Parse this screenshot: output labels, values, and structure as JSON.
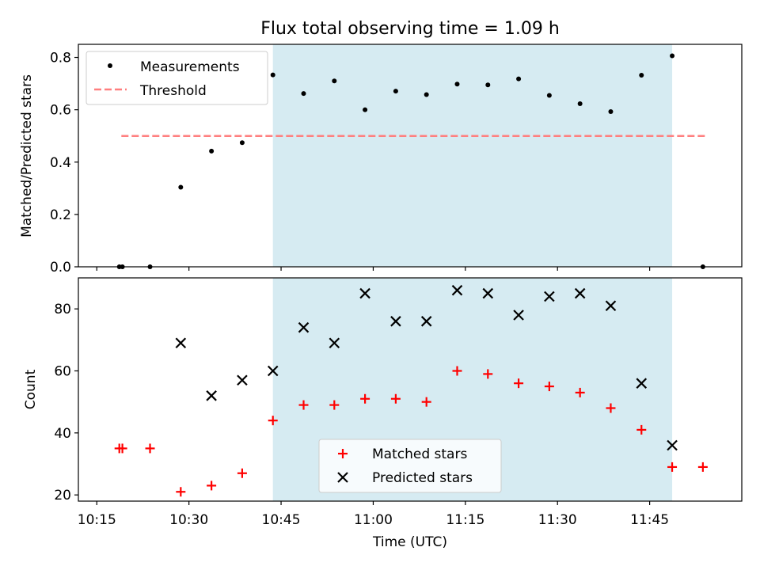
{
  "figure": {
    "title": "Flux total observing time = 1.09 h",
    "xlabel": "Time (UTC)",
    "x_ticks": [
      "10:15",
      "10:30",
      "10:45",
      "11:00",
      "11:15",
      "11:30",
      "11:45"
    ],
    "x_range": [
      "10:12",
      "12:00"
    ],
    "observing_window": {
      "start": "10:43:40",
      "end": "11:48:40"
    }
  },
  "colors": {
    "observing_window": "#add8e6",
    "measurements": "#000000",
    "threshold": "#ff7f7f",
    "matched": "#ff0000",
    "predicted": "#000000"
  },
  "chart_data": [
    {
      "type": "scatter",
      "ylabel": "Matched/Predicted stars",
      "ylim": [
        0.0,
        0.85
      ],
      "yticks": [
        "0.0",
        "0.2",
        "0.4",
        "0.6",
        "0.8"
      ],
      "legend": {
        "placement": "upper-left",
        "entries": [
          "Measurements",
          "Threshold"
        ]
      },
      "threshold": {
        "name": "Threshold",
        "y": 0.5,
        "x_range": [
          "10:19",
          "11:54"
        ]
      },
      "series": [
        {
          "name": "Measurements",
          "marker": "dot",
          "x": [
            "10:18:40",
            "10:19:10",
            "10:23:40",
            "10:28:40",
            "10:33:40",
            "10:38:40",
            "10:43:40",
            "10:48:40",
            "10:53:40",
            "10:58:40",
            "11:03:40",
            "11:08:40",
            "11:13:40",
            "11:18:40",
            "11:23:40",
            "11:28:40",
            "11:33:40",
            "11:38:40",
            "11:43:40",
            "11:48:40",
            "11:53:40"
          ],
          "y": [
            0.0,
            0.0,
            0.0,
            0.304,
            0.442,
            0.474,
            0.733,
            0.662,
            0.71,
            0.6,
            0.671,
            0.658,
            0.698,
            0.695,
            0.718,
            0.655,
            0.623,
            0.593,
            0.732,
            0.806,
            0.0
          ]
        }
      ]
    },
    {
      "type": "scatter",
      "ylabel": "Count",
      "ylim": [
        18,
        90
      ],
      "yticks": [
        "20",
        "40",
        "60",
        "80"
      ],
      "legend": {
        "placement": "lower-center",
        "entries": [
          "Matched stars",
          "Predicted stars"
        ]
      },
      "series": [
        {
          "name": "Matched stars",
          "marker": "plus",
          "x": [
            "10:18:40",
            "10:19:10",
            "10:23:40",
            "10:28:40",
            "10:33:40",
            "10:38:40",
            "10:43:40",
            "10:48:40",
            "10:53:40",
            "10:58:40",
            "11:03:40",
            "11:08:40",
            "11:13:40",
            "11:18:40",
            "11:23:40",
            "11:28:40",
            "11:33:40",
            "11:38:40",
            "11:43:40",
            "11:48:40",
            "11:53:40"
          ],
          "y": [
            35,
            35,
            35,
            21,
            23,
            27,
            44,
            49,
            49,
            51,
            51,
            50,
            60,
            59,
            56,
            55,
            53,
            48,
            41,
            29,
            29
          ]
        },
        {
          "name": "Predicted stars",
          "marker": "x",
          "x": [
            "10:28:40",
            "10:33:40",
            "10:38:40",
            "10:43:40",
            "10:48:40",
            "10:53:40",
            "10:58:40",
            "11:03:40",
            "11:08:40",
            "11:13:40",
            "11:18:40",
            "11:23:40",
            "11:28:40",
            "11:33:40",
            "11:38:40",
            "11:43:40",
            "11:48:40"
          ],
          "y": [
            69,
            52,
            57,
            60,
            74,
            69,
            85,
            76,
            76,
            86,
            85,
            78,
            84,
            85,
            81,
            56,
            36
          ]
        }
      ]
    }
  ]
}
